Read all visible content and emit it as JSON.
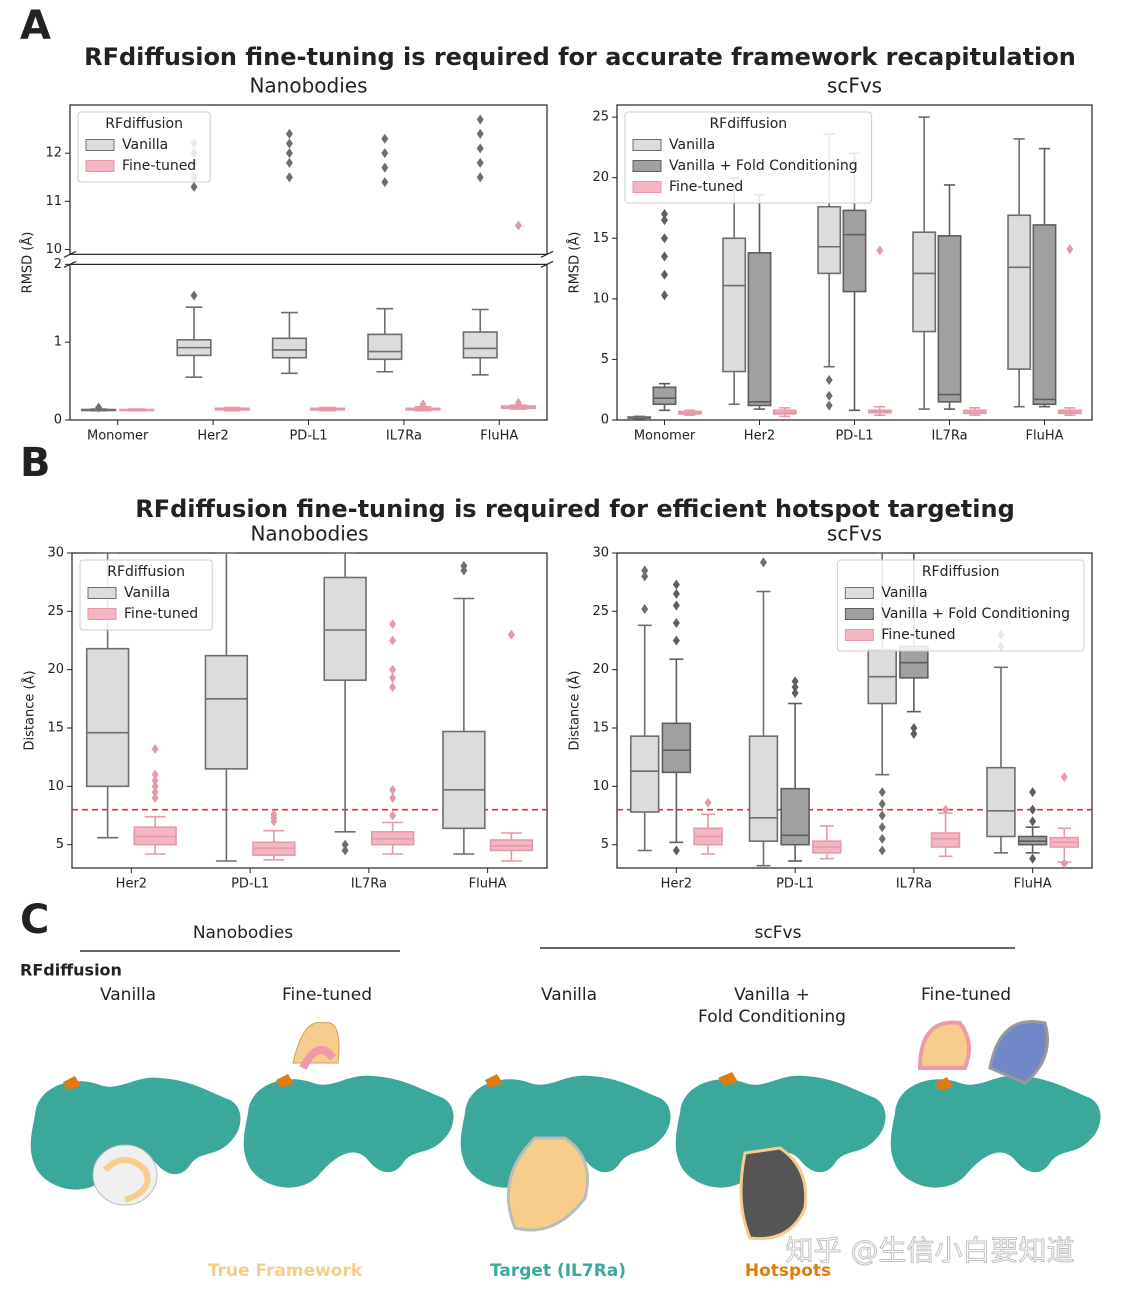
{
  "figure": {
    "panel_labels": [
      "A",
      "B",
      "C"
    ],
    "headings": [
      "RFdiffusion fine-tuning is required for accurate framework recapitulation",
      "RFdiffusion fine-tuning is required for efficient hotspot targeting"
    ]
  },
  "chart_data": [
    {
      "type": "box",
      "title": "Nanobodies",
      "y_label": "RMSD (Å)",
      "categories": [
        "Monomer",
        "Her2",
        "PD-L1",
        "IL7Ra",
        "FluHA"
      ],
      "broken_ylim": [
        [
          0,
          2
        ],
        [
          9.9,
          13
        ]
      ],
      "yticks": [
        0,
        1,
        2,
        10,
        11,
        12
      ],
      "legend_title": "RFdiffusion",
      "legend": "upper left",
      "series": [
        {
          "name": "Vanilla",
          "color": "#dcdcdc",
          "edge_color": "#6e6e6e",
          "values": [
            {
              "min": 0.12,
              "q1": 0.125,
              "median": 0.13,
              "q3": 0.135,
              "max": 0.14,
              "outliers": [
                0.16
              ]
            },
            {
              "min": 0.55,
              "q1": 0.83,
              "median": 0.93,
              "q3": 1.03,
              "max": 1.45,
              "outliers": [
                1.6,
                11.3,
                11.5,
                11.8,
                12.0,
                12.2
              ]
            },
            {
              "min": 0.6,
              "q1": 0.8,
              "median": 0.9,
              "q3": 1.05,
              "max": 1.38,
              "outliers": [
                11.5,
                11.8,
                12.0,
                12.2,
                12.4
              ]
            },
            {
              "min": 0.62,
              "q1": 0.78,
              "median": 0.88,
              "q3": 1.1,
              "max": 1.43,
              "outliers": [
                11.4,
                11.7,
                12.0,
                12.3
              ]
            },
            {
              "min": 0.58,
              "q1": 0.8,
              "median": 0.92,
              "q3": 1.13,
              "max": 1.42,
              "outliers": [
                11.5,
                11.8,
                12.1,
                12.4,
                12.7
              ]
            }
          ]
        },
        {
          "name": "Fine-tuned",
          "color": "#f4b6c2",
          "edge_color": "#e59aaa",
          "values": [
            {
              "min": 0.12,
              "q1": 0.125,
              "median": 0.13,
              "q3": 0.135,
              "max": 0.14,
              "outliers": []
            },
            {
              "min": 0.12,
              "q1": 0.13,
              "median": 0.14,
              "q3": 0.15,
              "max": 0.16,
              "outliers": []
            },
            {
              "min": 0.12,
              "q1": 0.13,
              "median": 0.14,
              "q3": 0.15,
              "max": 0.16,
              "outliers": []
            },
            {
              "min": 0.12,
              "q1": 0.13,
              "median": 0.14,
              "q3": 0.15,
              "max": 0.17,
              "outliers": [
                0.2
              ]
            },
            {
              "min": 0.14,
              "q1": 0.15,
              "median": 0.16,
              "q3": 0.18,
              "max": 0.19,
              "outliers": [
                0.22,
                10.5
              ]
            }
          ]
        }
      ]
    },
    {
      "type": "box",
      "title": "scFvs",
      "y_label": "RMSD (Å)",
      "categories": [
        "Monomer",
        "Her2",
        "PD-L1",
        "IL7Ra",
        "FluHA"
      ],
      "ylim": [
        0,
        26
      ],
      "yticks": [
        0,
        5,
        10,
        15,
        20,
        25
      ],
      "legend_title": "RFdiffusion",
      "legend": "upper left",
      "series": [
        {
          "name": "Vanilla",
          "color": "#dcdcdc",
          "edge_color": "#6e6e6e",
          "values": [
            {
              "min": 0.1,
              "q1": 0.15,
              "median": 0.2,
              "q3": 0.25,
              "max": 0.3,
              "outliers": []
            },
            {
              "min": 1.3,
              "q1": 4,
              "median": 11.1,
              "q3": 15,
              "max": 20,
              "outliers": []
            },
            {
              "min": 4.4,
              "q1": 12.1,
              "median": 14.3,
              "q3": 17.6,
              "max": 23.6,
              "outliers": [
                1.2,
                2.0,
                3.3
              ]
            },
            {
              "min": 0.9,
              "q1": 7.3,
              "median": 12.1,
              "q3": 15.5,
              "max": 25,
              "outliers": []
            },
            {
              "min": 1.1,
              "q1": 4.2,
              "median": 12.6,
              "q3": 16.9,
              "max": 23.2,
              "outliers": []
            }
          ]
        },
        {
          "name": "Vanilla + Fold Conditioning",
          "color": "#a0a0a0",
          "edge_color": "#5e5e5e",
          "values": [
            {
              "min": 0.8,
              "q1": 1.3,
              "median": 1.8,
              "q3": 2.7,
              "max": 3,
              "outliers": [
                10.3,
                12,
                13.5,
                15,
                16.5,
                17
              ]
            },
            {
              "min": 0.9,
              "q1": 1.2,
              "median": 1.5,
              "q3": 13.8,
              "max": 18.6,
              "outliers": []
            },
            {
              "min": 0.8,
              "q1": 10.6,
              "median": 15.3,
              "q3": 17.3,
              "max": 22,
              "outliers": []
            },
            {
              "min": 0.9,
              "q1": 1.5,
              "median": 2.1,
              "q3": 15.2,
              "max": 19.4,
              "outliers": []
            },
            {
              "min": 1.1,
              "q1": 1.3,
              "median": 1.7,
              "q3": 16.1,
              "max": 22.4,
              "outliers": []
            }
          ]
        },
        {
          "name": "Fine-tuned",
          "color": "#f4b6c2",
          "edge_color": "#e59aaa",
          "values": [
            {
              "min": 0.4,
              "q1": 0.5,
              "median": 0.6,
              "q3": 0.7,
              "max": 0.8,
              "outliers": []
            },
            {
              "min": 0.3,
              "q1": 0.5,
              "median": 0.6,
              "q3": 0.8,
              "max": 1,
              "outliers": []
            },
            {
              "min": 0.4,
              "q1": 0.6,
              "median": 0.7,
              "q3": 0.8,
              "max": 1.1,
              "outliers": [
                14
              ]
            },
            {
              "min": 0.4,
              "q1": 0.55,
              "median": 0.65,
              "q3": 0.8,
              "max": 1.0,
              "outliers": []
            },
            {
              "min": 0.4,
              "q1": 0.55,
              "median": 0.65,
              "q3": 0.8,
              "max": 1.0,
              "outliers": [
                14.1
              ]
            }
          ]
        }
      ]
    },
    {
      "type": "box",
      "title": "Nanobodies",
      "y_label": "Distance (Å)",
      "categories": [
        "Her2",
        "PD-L1",
        "IL7Ra",
        "FluHA"
      ],
      "ylim": [
        3,
        30
      ],
      "yticks": [
        5,
        10,
        15,
        20,
        25,
        30
      ],
      "reference_line": 8,
      "reference_line_color": "#d33a2c",
      "legend_title": "RFdiffusion",
      "legend": "upper left",
      "series": [
        {
          "name": "Vanilla",
          "color": "#dcdcdc",
          "edge_color": "#6e6e6e",
          "values": [
            {
              "min": 5.6,
              "q1": 10,
              "median": 14.6,
              "q3": 21.8,
              "max": 30,
              "outliers": []
            },
            {
              "min": 3.6,
              "q1": 11.5,
              "median": 17.5,
              "q3": 21.2,
              "max": 30,
              "outliers": []
            },
            {
              "min": 6.1,
              "q1": 19.1,
              "median": 23.4,
              "q3": 27.9,
              "max": 30,
              "outliers": [
                4.5,
                5
              ]
            },
            {
              "min": 4.2,
              "q1": 6.4,
              "median": 9.7,
              "q3": 14.7,
              "max": 26.1,
              "outliers": [
                28.5,
                28.9
              ]
            }
          ]
        },
        {
          "name": "Fine-tuned",
          "color": "#f4b6c2",
          "edge_color": "#e59aaa",
          "values": [
            {
              "min": 4.2,
              "q1": 5,
              "median": 5.7,
              "q3": 6.5,
              "max": 7.4,
              "outliers": [
                9,
                9.5,
                10,
                10.5,
                11,
                13.2
              ]
            },
            {
              "min": 3.7,
              "q1": 4.1,
              "median": 4.7,
              "q3": 5.2,
              "max": 6.2,
              "outliers": [
                7,
                7.3,
                7.6
              ]
            },
            {
              "min": 4.2,
              "q1": 5,
              "median": 5.5,
              "q3": 6.1,
              "max": 6.9,
              "outliers": [
                7.5,
                9,
                9.7,
                18.5,
                19.3,
                20,
                22.5,
                23.9
              ]
            },
            {
              "min": 3.6,
              "q1": 4.5,
              "median": 4.9,
              "q3": 5.4,
              "max": 6,
              "outliers": [
                23
              ]
            }
          ]
        }
      ]
    },
    {
      "type": "box",
      "title": "scFvs",
      "y_label": "Distance (Å)",
      "categories": [
        "Her2",
        "PD-L1",
        "IL7Ra",
        "FluHA"
      ],
      "ylim": [
        3,
        30
      ],
      "yticks": [
        5,
        10,
        15,
        20,
        25,
        30
      ],
      "reference_line": 8,
      "reference_line_color": "#d33a2c",
      "legend_title": "RFdiffusion",
      "legend": "upper right",
      "series": [
        {
          "name": "Vanilla",
          "color": "#dcdcdc",
          "edge_color": "#6e6e6e",
          "values": [
            {
              "min": 4.5,
              "q1": 7.8,
              "median": 11.3,
              "q3": 14.3,
              "max": 23.8,
              "outliers": [
                25.2,
                28,
                28.5
              ]
            },
            {
              "min": 3.2,
              "q1": 5.3,
              "median": 7.3,
              "q3": 14.3,
              "max": 26.7,
              "outliers": [
                29.2
              ]
            },
            {
              "min": 11,
              "q1": 17.1,
              "median": 19.4,
              "q3": 21.7,
              "max": 30,
              "outliers": [
                4.5,
                5.5,
                6.5,
                7.5,
                8.5,
                9.5
              ]
            },
            {
              "min": 4.3,
              "q1": 5.7,
              "median": 7.9,
              "q3": 11.6,
              "max": 20.2,
              "outliers": [
                22,
                23
              ]
            }
          ]
        },
        {
          "name": "Vanilla + Fold Conditioning",
          "color": "#a0a0a0",
          "edge_color": "#5e5e5e",
          "values": [
            {
              "min": 5.2,
              "q1": 11.2,
              "median": 13.1,
              "q3": 15.4,
              "max": 20.9,
              "outliers": [
                4.5,
                22.5,
                24,
                25.5,
                26.5,
                27.3
              ]
            },
            {
              "min": 3.6,
              "q1": 5,
              "median": 5.8,
              "q3": 9.8,
              "max": 17.1,
              "outliers": [
                18,
                18.5,
                19
              ]
            },
            {
              "min": 16.4,
              "q1": 19.3,
              "median": 20.6,
              "q3": 22,
              "max": 30,
              "outliers": [
                14.5,
                15
              ]
            },
            {
              "min": 4.3,
              "q1": 5,
              "median": 5.3,
              "q3": 5.7,
              "max": 6.5,
              "outliers": [
                3.8,
                7,
                8,
                9.5
              ]
            }
          ]
        },
        {
          "name": "Fine-tuned",
          "color": "#f4b6c2",
          "edge_color": "#e59aaa",
          "values": [
            {
              "min": 4.2,
              "q1": 5,
              "median": 5.7,
              "q3": 6.4,
              "max": 7.6,
              "outliers": [
                8.6
              ]
            },
            {
              "min": 3.8,
              "q1": 4.3,
              "median": 4.8,
              "q3": 5.3,
              "max": 6.6,
              "outliers": []
            },
            {
              "min": 4,
              "q1": 4.8,
              "median": 5.5,
              "q3": 6,
              "max": 7.7,
              "outliers": [
                8
              ]
            },
            {
              "min": 3.5,
              "q1": 4.8,
              "median": 5.2,
              "q3": 5.6,
              "max": 6.4,
              "outliers": [
                3.4,
                10.8
              ]
            }
          ]
        }
      ]
    }
  ],
  "panel_c": {
    "group_labels": [
      "Nanobodies",
      "scFvs"
    ],
    "row_label": "RFdiffusion",
    "columns": [
      "Vanilla",
      "Fine-tuned",
      "Vanilla",
      [
        "Vanilla +",
        "Fold Conditioning"
      ],
      "Fine-tuned"
    ],
    "legend": [
      {
        "label": "True Framework",
        "color": "#f8cc8a"
      },
      {
        "label": "Target (IL7Ra)",
        "color": "#3aa89a"
      },
      {
        "label": "Hotspots",
        "color": "#e07b10"
      }
    ],
    "watermark": "知乎 @生信小白要知道"
  }
}
